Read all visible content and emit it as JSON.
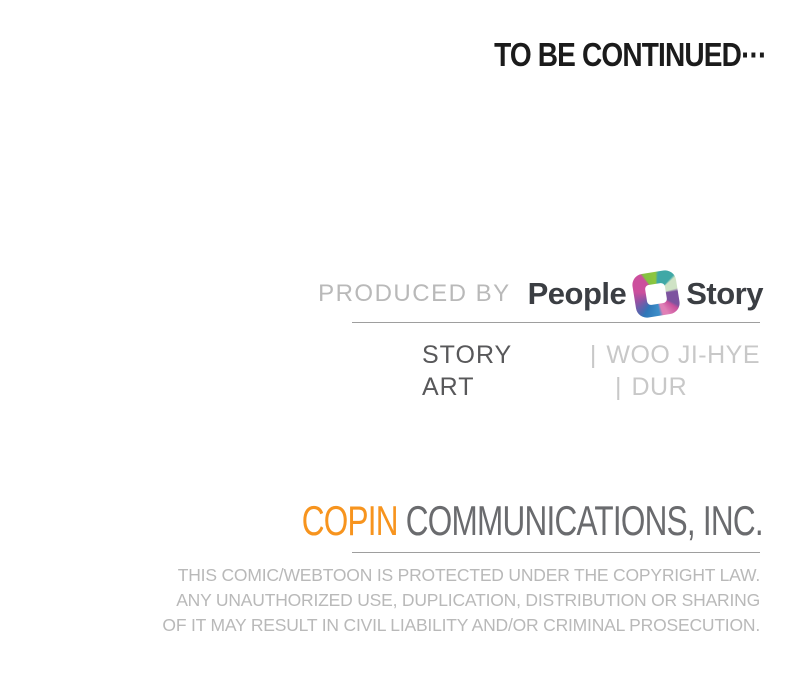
{
  "page": {
    "background": "#ffffff",
    "to_be_continued": "TO BE CONTINUED···"
  },
  "produced_by": {
    "label": "PRODUCED BY",
    "brand_first": "People",
    "brand_second": "Story",
    "logo_icon": "people-story-logo",
    "logo_colors": [
      "#cc4f9d",
      "#83c341",
      "#3fa8a6",
      "#cfe3c5",
      "#7d539f",
      "#c9519c",
      "#e07fb6",
      "#3d8fc9",
      "#4b69b0",
      "#9153a3"
    ]
  },
  "credits": {
    "separator": "|",
    "rows": [
      {
        "label": "STORY",
        "value": "WOO JI-HYE"
      },
      {
        "label": "ART",
        "value": "DUR"
      }
    ]
  },
  "company": {
    "name_highlight": "COPIN",
    "name_rest": "COMMUNICATIONS, INC.",
    "highlight_color": "#f7941e",
    "rest_color": "#6a6b6e"
  },
  "copyright": {
    "lines": [
      "THIS COMIC/WEBTOON IS PROTECTED UNDER THE COPYRIGHT LAW.",
      "ANY UNAUTHORIZED USE, DUPLICATION, DISTRIBUTION OR SHARING",
      "OF IT MAY RESULT IN CIVIL LIABILITY AND/OR CRIMINAL PROSECUTION."
    ]
  }
}
